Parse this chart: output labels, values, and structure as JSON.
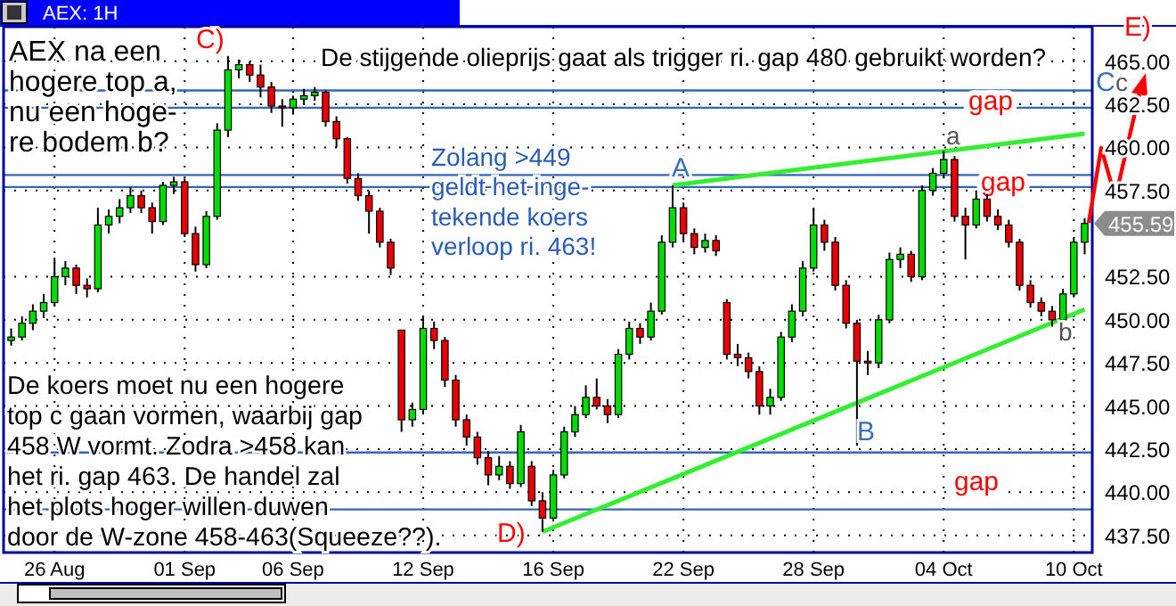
{
  "chart_data": {
    "type": "candlestick",
    "title": "AEX: 1H",
    "categories": [
      null,
      null,
      null,
      null,
      "26 Aug",
      null,
      null,
      null,
      null,
      null,
      null,
      null,
      null,
      null,
      null,
      null,
      "01 Sep",
      null,
      null,
      null,
      null,
      null,
      null,
      null,
      null,
      null,
      "06 Sep",
      null,
      null,
      null,
      null,
      null,
      null,
      null,
      null,
      null,
      null,
      null,
      "12 Sep",
      null,
      null,
      null,
      null,
      null,
      null,
      null,
      null,
      null,
      null,
      null,
      "16 Sep",
      null,
      null,
      null,
      null,
      null,
      null,
      null,
      null,
      null,
      null,
      null,
      "22 Sep",
      null,
      null,
      null,
      null,
      null,
      null,
      null,
      null,
      null,
      null,
      null,
      "28 Sep",
      null,
      null,
      null,
      null,
      null,
      null,
      null,
      null,
      null,
      null,
      null,
      "04 Oct",
      null,
      null,
      null,
      null,
      null,
      null,
      null,
      null,
      null,
      null,
      null,
      "10 Oct",
      null
    ],
    "ohlc": [
      [
        448.8,
        449.5,
        448.5,
        449.0
      ],
      [
        449.0,
        450.2,
        448.8,
        449.8
      ],
      [
        449.8,
        450.9,
        449.4,
        450.5
      ],
      [
        450.5,
        451.5,
        450.1,
        451.0
      ],
      [
        451.0,
        453.6,
        450.8,
        452.5
      ],
      [
        452.5,
        453.4,
        452.0,
        453.0
      ],
      [
        453.0,
        453.2,
        451.5,
        452.0
      ],
      [
        452.0,
        452.4,
        451.3,
        451.8
      ],
      [
        451.8,
        456.5,
        451.6,
        455.5
      ],
      [
        455.5,
        456.4,
        455.0,
        456.0
      ],
      [
        456.0,
        457.0,
        455.6,
        456.5
      ],
      [
        456.5,
        457.7,
        456.2,
        457.2
      ],
      [
        457.2,
        457.5,
        456.2,
        456.5
      ],
      [
        456.5,
        456.8,
        455.0,
        455.7
      ],
      [
        455.7,
        458.0,
        455.5,
        457.8
      ],
      [
        457.8,
        458.3,
        457.3,
        458.0
      ],
      [
        458.0,
        458.2,
        454.8,
        455.0
      ],
      [
        455.0,
        455.4,
        452.8,
        453.2
      ],
      [
        453.2,
        456.3,
        453.0,
        456.0
      ],
      [
        456.0,
        461.4,
        455.8,
        461.0
      ],
      [
        461.0,
        465.3,
        460.6,
        464.5
      ],
      [
        464.5,
        465.1,
        464.0,
        464.8
      ],
      [
        464.8,
        465.0,
        463.8,
        464.2
      ],
      [
        464.2,
        464.8,
        462.9,
        463.5
      ],
      [
        463.5,
        463.8,
        462.0,
        462.4
      ],
      [
        462.4,
        462.8,
        461.2,
        462.3
      ],
      [
        462.3,
        463.0,
        461.9,
        462.8
      ],
      [
        462.8,
        463.4,
        462.5,
        463.0
      ],
      [
        463.0,
        463.5,
        462.7,
        463.2
      ],
      [
        463.2,
        463.3,
        461.2,
        461.5
      ],
      [
        461.5,
        461.8,
        460.0,
        460.5
      ],
      [
        460.5,
        460.6,
        457.9,
        458.2
      ],
      [
        458.2,
        458.5,
        456.9,
        457.2
      ],
      [
        457.2,
        457.5,
        455.0,
        456.3
      ],
      [
        456.3,
        456.5,
        454.2,
        454.5
      ],
      [
        454.5,
        454.7,
        452.6,
        453.0
      ],
      [
        449.4,
        449.4,
        443.5,
        444.2
      ],
      [
        444.2,
        445.2,
        443.8,
        444.8
      ],
      [
        444.8,
        450.2,
        444.5,
        449.5
      ],
      [
        449.5,
        449.9,
        448.3,
        448.8
      ],
      [
        448.8,
        449.0,
        446.1,
        446.5
      ],
      [
        446.5,
        446.8,
        443.8,
        444.2
      ],
      [
        444.2,
        444.5,
        442.7,
        443.2
      ],
      [
        443.2,
        443.5,
        441.6,
        442.0
      ],
      [
        442.0,
        442.4,
        440.4,
        441.0
      ],
      [
        441.0,
        442.1,
        440.7,
        441.5
      ],
      [
        441.5,
        441.8,
        440.2,
        440.5
      ],
      [
        440.5,
        443.9,
        440.3,
        443.5
      ],
      [
        441.5,
        441.8,
        439.2,
        439.5
      ],
      [
        439.5,
        440.0,
        437.7,
        438.5
      ],
      [
        438.5,
        441.3,
        438.3,
        441.0
      ],
      [
        441.0,
        443.8,
        440.8,
        443.5
      ],
      [
        443.5,
        445.0,
        443.2,
        444.5
      ],
      [
        444.5,
        446.2,
        444.3,
        445.5
      ],
      [
        445.5,
        446.6,
        444.8,
        445.0
      ],
      [
        445.0,
        445.4,
        444.0,
        444.5
      ],
      [
        444.5,
        448.3,
        444.3,
        448.0
      ],
      [
        448.0,
        449.9,
        447.7,
        449.5
      ],
      [
        449.5,
        449.8,
        448.6,
        449.0
      ],
      [
        449.0,
        451.0,
        448.8,
        450.5
      ],
      [
        450.5,
        454.9,
        450.3,
        454.5
      ],
      [
        454.5,
        457.8,
        454.2,
        456.5
      ],
      [
        456.5,
        456.8,
        454.6,
        455.0
      ],
      [
        455.0,
        455.3,
        453.8,
        454.2
      ],
      [
        454.2,
        455.0,
        453.9,
        454.6
      ],
      [
        454.6,
        454.9,
        453.7,
        454.0
      ],
      [
        451.0,
        451.2,
        447.7,
        448.0
      ],
      [
        448.0,
        448.6,
        447.3,
        447.8
      ],
      [
        447.8,
        448.1,
        446.6,
        447.0
      ],
      [
        447.0,
        447.3,
        444.5,
        445.0
      ],
      [
        445.0,
        446.0,
        444.5,
        445.5
      ],
      [
        445.5,
        449.3,
        445.3,
        449.0
      ],
      [
        449.0,
        450.9,
        448.7,
        450.5
      ],
      [
        450.5,
        453.4,
        450.2,
        453.0
      ],
      [
        453.0,
        456.5,
        452.8,
        455.5
      ],
      [
        455.5,
        455.8,
        454.0,
        454.5
      ],
      [
        454.5,
        454.8,
        451.7,
        452.0
      ],
      [
        452.0,
        452.3,
        449.5,
        449.8
      ],
      [
        449.8,
        450.0,
        442.7,
        447.6
      ],
      [
        447.6,
        448.2,
        446.8,
        447.5
      ],
      [
        447.5,
        450.3,
        447.2,
        450.0
      ],
      [
        450.0,
        453.9,
        449.8,
        453.5
      ],
      [
        453.5,
        454.2,
        453.0,
        453.8
      ],
      [
        453.8,
        454.0,
        452.2,
        452.5
      ],
      [
        452.5,
        457.8,
        452.3,
        457.5
      ],
      [
        457.5,
        458.8,
        457.2,
        458.5
      ],
      [
        458.5,
        459.8,
        458.2,
        459.3
      ],
      [
        459.3,
        459.5,
        455.7,
        456.0
      ],
      [
        456.0,
        456.5,
        453.5,
        455.5
      ],
      [
        455.5,
        457.5,
        455.3,
        457.0
      ],
      [
        457.0,
        457.3,
        455.7,
        456.0
      ],
      [
        456.0,
        456.4,
        455.2,
        455.5
      ],
      [
        455.5,
        455.8,
        454.2,
        454.5
      ],
      [
        454.5,
        454.7,
        451.7,
        452.0
      ],
      [
        452.0,
        452.3,
        450.7,
        451.0
      ],
      [
        451.0,
        451.3,
        450.2,
        450.5
      ],
      [
        450.5,
        450.8,
        449.6,
        450.0
      ],
      [
        450.0,
        451.8,
        449.8,
        451.5
      ],
      [
        451.5,
        454.8,
        451.3,
        454.5
      ],
      [
        454.5,
        455.9,
        453.8,
        455.59
      ]
    ],
    "series": [
      {
        "type": "line",
        "color": "#33ee33",
        "values": [
          null,
          null,
          null,
          null,
          null,
          null,
          null,
          null,
          null,
          null,
          null,
          null,
          null,
          null,
          null,
          null,
          null,
          null,
          null,
          null,
          null,
          null,
          null,
          null,
          null,
          null,
          null,
          null,
          null,
          null,
          null,
          null,
          null,
          null,
          null,
          null,
          null,
          null,
          null,
          null,
          null,
          null,
          null,
          null,
          null,
          null,
          null,
          null,
          null,
          null,
          null,
          null,
          null,
          null,
          null,
          null,
          null,
          null,
          null,
          null,
          null,
          457.8,
          null,
          null,
          null,
          null,
          null,
          null,
          null,
          null,
          null,
          null,
          null,
          null,
          null,
          null,
          null,
          null,
          null,
          null,
          null,
          null,
          null,
          null,
          null,
          null,
          null,
          null,
          null,
          null,
          null,
          null,
          null,
          null,
          null,
          null,
          null,
          null,
          null,
          460.8
        ]
      },
      {
        "type": "line",
        "color": "#33ee33",
        "values": [
          null,
          null,
          null,
          null,
          null,
          null,
          null,
          null,
          null,
          null,
          null,
          null,
          null,
          null,
          null,
          null,
          null,
          null,
          null,
          null,
          null,
          null,
          null,
          null,
          null,
          null,
          null,
          null,
          null,
          null,
          null,
          null,
          null,
          null,
          null,
          null,
          null,
          null,
          null,
          null,
          null,
          null,
          null,
          null,
          null,
          null,
          null,
          null,
          null,
          437.7,
          null,
          null,
          null,
          null,
          null,
          null,
          null,
          null,
          null,
          null,
          null,
          null,
          null,
          null,
          null,
          null,
          null,
          null,
          null,
          null,
          null,
          null,
          null,
          null,
          null,
          null,
          null,
          null,
          null,
          null,
          null,
          null,
          null,
          null,
          null,
          null,
          null,
          null,
          null,
          null,
          null,
          null,
          null,
          null,
          null,
          null,
          null,
          null,
          null,
          450.6
        ]
      }
    ],
    "ylim": [
      436.5,
      467
    ],
    "yticks": [
      {
        "value": 437.5,
        "label": "437.50"
      },
      {
        "value": 440,
        "label": "440.00"
      },
      {
        "value": 442.5,
        "label": "442.50"
      },
      {
        "value": 445,
        "label": "445.00"
      },
      {
        "value": 447.5,
        "label": "447.50"
      },
      {
        "value": 450,
        "label": "450.00"
      },
      {
        "value": 452.5,
        "label": "452.50"
      },
      {
        "value": 457.5,
        "label": "457.50"
      },
      {
        "value": 460,
        "label": "460.00"
      },
      {
        "value": 462.5,
        "label": "462.50"
      },
      {
        "value": 465,
        "label": "465.00"
      }
    ],
    "grid": true,
    "ref_lines": [
      {
        "axis": "y",
        "value": 463.3,
        "color": "#3366bb"
      },
      {
        "axis": "y",
        "value": 462.3,
        "label": "gap",
        "color": "#3366bb"
      },
      {
        "axis": "y",
        "value": 458.4,
        "color": "#3366bb"
      },
      {
        "axis": "y",
        "value": 457.7,
        "label": "gap",
        "color": "#3366bb"
      },
      {
        "axis": "y",
        "value": 442.3,
        "color": "#3366bb"
      },
      {
        "axis": "y",
        "value": 439.0,
        "label": "gap",
        "color": "#3366bb"
      }
    ],
    "annotations": [
      "AEX na een\nhogere top a,\nnu een hoge-\nre bodem b?",
      "De stijgende olieprijs gaat als trigger ri. gap 480 gebruikt worden?",
      "Zolang >449\ngeldt het inge-\ntekende koers\nverloop ri. 463!",
      "De koers moet nu een hogere\ntop c gaan vormen, waarbij gap\n458 W vormt. Zodra >458 kan\nhet ri. gap 463. De handel zal\nhet plots hoger willen duwen\ndoor de W-zone 458-463(Squeeze??).",
      "C)",
      "A",
      "a",
      "B",
      "b",
      "D)",
      "E)",
      "C",
      "c",
      "455.59"
    ]
  }
}
